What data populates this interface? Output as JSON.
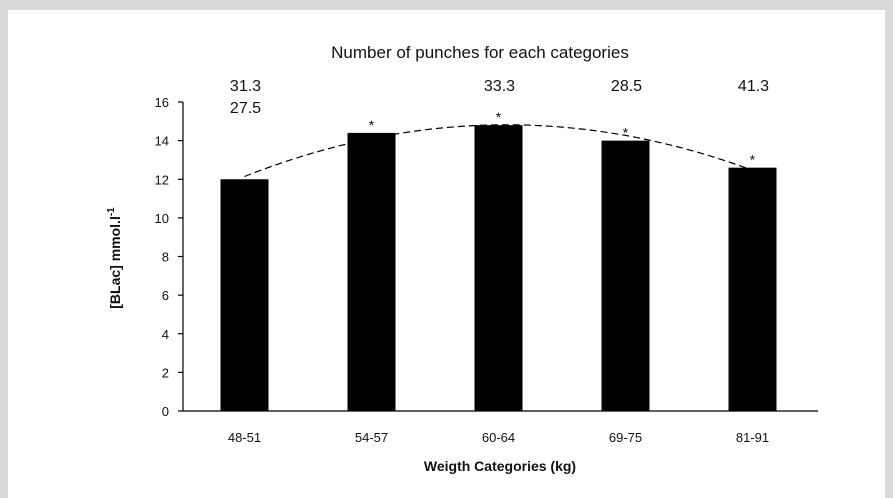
{
  "chart_data": {
    "type": "bar",
    "title": "Number of punches for each categories",
    "xlabel": "Weigth Categories (kg)",
    "ylabel": "[BLac] mmol.l",
    "ylabel_superscript": "-1",
    "categories": [
      "48-51",
      "54-57",
      "60-64",
      "69-75",
      "81-91"
    ],
    "values": [
      12.0,
      14.4,
      14.8,
      14.0,
      12.6
    ],
    "significance": [
      "",
      "*",
      "*",
      "*",
      "*"
    ],
    "punch_labels_top": [
      "31.3",
      "",
      "33.3",
      "28.5",
      "41.3"
    ],
    "punch_labels_second": [
      "27.5",
      "",
      "",
      "",
      ""
    ],
    "ylim": [
      0,
      16
    ],
    "yticks": [
      0,
      2,
      4,
      6,
      8,
      10,
      12,
      14,
      16
    ],
    "trendline": "dashed quadratic",
    "grid": false,
    "bar_color": "#000000"
  }
}
